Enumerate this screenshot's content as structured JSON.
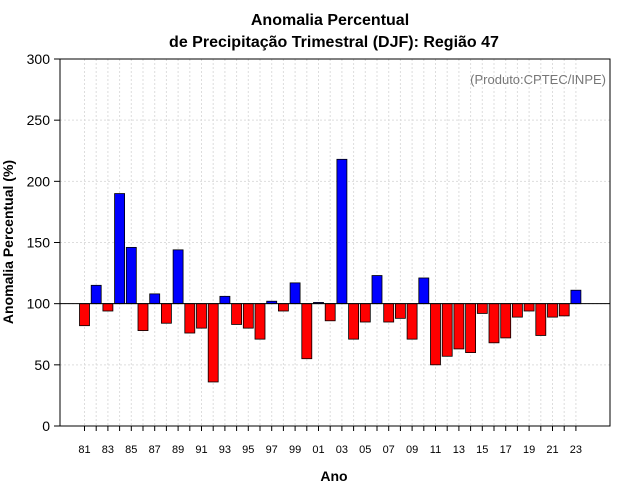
{
  "chart_data": {
    "type": "bar",
    "title": "Anomalia Percentual",
    "subtitle": "de Precipitação Trimestral (DJF): Região 47",
    "xlabel": "Ano",
    "ylabel": "Anomalia Percentual (%)",
    "credit": "(Produto:CPTEC/INPE)",
    "ylim": [
      0,
      300
    ],
    "yticks": [
      "0",
      "50",
      "100",
      "150",
      "200",
      "250",
      "300"
    ],
    "baseline": 100,
    "grid": true,
    "colors": {
      "above": "#0000ff",
      "below": "#ff0000"
    },
    "years": [
      "81",
      "82",
      "83",
      "84",
      "85",
      "86",
      "87",
      "88",
      "89",
      "90",
      "91",
      "92",
      "93",
      "94",
      "95",
      "96",
      "97",
      "98",
      "99",
      "00",
      "01",
      "02",
      "03",
      "04",
      "05",
      "06",
      "07",
      "08",
      "09",
      "10",
      "11",
      "12",
      "13",
      "14",
      "15",
      "16",
      "17",
      "18",
      "19",
      "20",
      "21",
      "22",
      "23"
    ],
    "xtick_labels": [
      "81",
      "83",
      "85",
      "87",
      "89",
      "91",
      "93",
      "95",
      "97",
      "99",
      "01",
      "03",
      "05",
      "07",
      "09",
      "11",
      "13",
      "15",
      "17",
      "19",
      "21",
      "23"
    ],
    "values": [
      82,
      115,
      94,
      190,
      146,
      78,
      108,
      84,
      144,
      76,
      80,
      36,
      106,
      83,
      80,
      71,
      102,
      94,
      117,
      55,
      101,
      86,
      218,
      71,
      85,
      123,
      85,
      88,
      71,
      121,
      50,
      57,
      63,
      60,
      92,
      68,
      72,
      89,
      94,
      74,
      89,
      90,
      111
    ]
  }
}
